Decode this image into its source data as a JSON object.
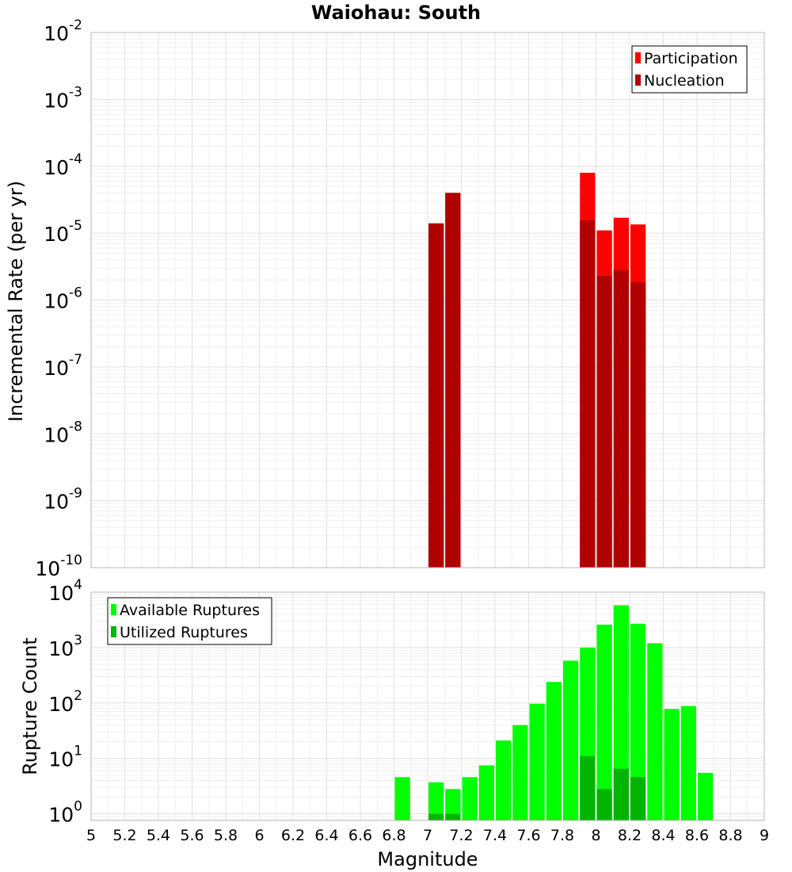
{
  "chart_data": [
    {
      "id": "rates",
      "type": "bar",
      "title": "Waiohau: South",
      "xlabel": "",
      "ylabel": "Incremental Rate (per yr)",
      "xlim": [
        5,
        9
      ],
      "ylim_log10": [
        -10,
        -2
      ],
      "bin_width": 0.1,
      "grid": true,
      "legend_position": "top-right",
      "series": [
        {
          "name": "Participation",
          "color": "#ff0000",
          "x": [
            7.05,
            7.15,
            7.95,
            8.05,
            8.15,
            8.25
          ],
          "values": [
            1.4e-05,
            4e-05,
            8e-05,
            1.1e-05,
            1.7e-05,
            1.35e-05
          ]
        },
        {
          "name": "Nucleation",
          "color": "#b00000",
          "x": [
            7.05,
            7.15,
            7.95,
            8.05,
            8.15,
            8.25
          ],
          "values": [
            1.4e-05,
            4e-05,
            1.55e-05,
            2.3e-06,
            2.8e-06,
            1.85e-06
          ]
        }
      ]
    },
    {
      "id": "counts",
      "type": "bar",
      "title": "",
      "xlabel": "Magnitude",
      "ylabel": "Rupture Count",
      "xlim": [
        5,
        9
      ],
      "ylim_log10": [
        -0.12,
        4
      ],
      "bin_width": 0.1,
      "grid": true,
      "legend_position": "top-left",
      "x_ticks": [
        "5",
        "5.2",
        "5.4",
        "5.6",
        "5.8",
        "6",
        "6.2",
        "6.4",
        "6.6",
        "6.8",
        "7",
        "7.2",
        "7.4",
        "7.6",
        "7.8",
        "8",
        "8.2",
        "8.4",
        "8.6",
        "8.8",
        "9"
      ],
      "series": [
        {
          "name": "Available Ruptures",
          "color": "#00ff00",
          "x": [
            6.85,
            7.05,
            7.15,
            7.25,
            7.35,
            7.45,
            7.55,
            7.65,
            7.75,
            7.85,
            7.95,
            8.05,
            8.15,
            8.25,
            8.35,
            8.45,
            8.55,
            8.65
          ],
          "values": [
            4.6,
            3.7,
            2.8,
            4.6,
            7.5,
            21,
            40,
            97,
            240,
            580,
            1000,
            2600,
            5800,
            2700,
            1200,
            78,
            88,
            5.5
          ]
        },
        {
          "name": "Utilized Ruptures",
          "color": "#00b400",
          "x": [
            7.05,
            7.15,
            7.95,
            8.05,
            8.15,
            8.25
          ],
          "values": [
            1,
            1,
            11,
            2.8,
            6.5,
            4.6
          ]
        }
      ]
    }
  ]
}
